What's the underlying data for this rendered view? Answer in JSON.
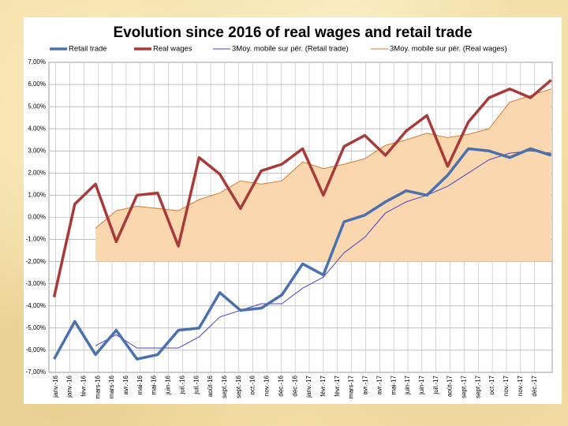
{
  "chart_data": {
    "type": "line",
    "title": "Evolution since 2016 of real wages and retail trade",
    "x": [
      0,
      1,
      2,
      3,
      4,
      5,
      6,
      7,
      8,
      9,
      10,
      11,
      12,
      13,
      14,
      15,
      16,
      17,
      18,
      19,
      20,
      21,
      22,
      23,
      24
    ],
    "series": [
      {
        "name": "Retail trade",
        "color": "#4a70ae",
        "width": 3.5,
        "values": [
          -6.4,
          -4.7,
          -6.2,
          -5.1,
          -6.4,
          -6.2,
          -5.1,
          -5.0,
          -3.4,
          -4.2,
          -4.1,
          -3.5,
          -2.1,
          -2.6,
          -0.2,
          0.1,
          0.7,
          1.2,
          1.0,
          1.9,
          3.1,
          3.0,
          2.7,
          3.1,
          2.8
        ]
      },
      {
        "name": "Real wages",
        "color": "#a83a3a",
        "width": 3.5,
        "values": [
          -3.6,
          0.6,
          1.5,
          -1.1,
          1.0,
          1.1,
          -1.3,
          2.7,
          1.95,
          0.4,
          2.1,
          2.4,
          3.1,
          1.0,
          3.2,
          3.7,
          2.8,
          3.9,
          4.6,
          2.3,
          4.3,
          5.4,
          5.8,
          5.4,
          6.2
        ]
      },
      {
        "name": "3Moy. mobile sur pér. (Retail trade)",
        "color": "#4a3fc4",
        "width": 1,
        "values": [
          null,
          null,
          -5.8,
          -5.3,
          -5.9,
          -5.9,
          -5.9,
          -5.4,
          -4.5,
          -4.2,
          -3.9,
          -3.9,
          -3.2,
          -2.7,
          -1.6,
          -0.9,
          0.2,
          0.7,
          1.0,
          1.4,
          2.0,
          2.6,
          2.9,
          3.0,
          2.9
        ]
      },
      {
        "name": "3Moy. mobile sur pér. (Real wages)",
        "color": "#d67a2c",
        "width": 1,
        "fill": "#fbd7b0",
        "fill_to": -2,
        "values": [
          null,
          null,
          -0.5,
          0.3,
          0.5,
          0.4,
          0.3,
          0.8,
          1.1,
          1.65,
          1.5,
          1.65,
          2.5,
          2.2,
          2.4,
          2.65,
          3.25,
          3.5,
          3.8,
          3.6,
          3.75,
          4.0,
          5.2,
          5.5,
          5.8
        ]
      }
    ],
    "xlim": [
      -0.25,
      24.05
    ],
    "xticks": [
      {
        "value": 0.08,
        "label": "janv.-16"
      },
      {
        "value": 0.76,
        "label": "janv.-16"
      },
      {
        "value": 1.44,
        "label": "févr.-16"
      },
      {
        "value": 2.12,
        "label": "mars-16"
      },
      {
        "value": 2.8,
        "label": "mars-16"
      },
      {
        "value": 3.48,
        "label": "avr.-16"
      },
      {
        "value": 4.16,
        "label": "mai-16"
      },
      {
        "value": 4.84,
        "label": "mai-16"
      },
      {
        "value": 5.52,
        "label": "juin-16"
      },
      {
        "value": 6.2,
        "label": "juil.-16"
      },
      {
        "value": 6.88,
        "label": "juil.-16"
      },
      {
        "value": 7.56,
        "label": "août-16"
      },
      {
        "value": 8.24,
        "label": "sept.-16"
      },
      {
        "value": 8.92,
        "label": "sept.-16"
      },
      {
        "value": 9.6,
        "label": "oct.-16"
      },
      {
        "value": 10.28,
        "label": "nov.-16"
      },
      {
        "value": 10.96,
        "label": "déc.-16"
      },
      {
        "value": 11.64,
        "label": "déc.-16"
      },
      {
        "value": 12.32,
        "label": "janv.-17"
      },
      {
        "value": 13,
        "label": "févr.-17"
      },
      {
        "value": 13.68,
        "label": "févr.-17"
      },
      {
        "value": 14.36,
        "label": "mars-17"
      },
      {
        "value": 15.04,
        "label": "avr.-17"
      },
      {
        "value": 15.72,
        "label": "avr.-17"
      },
      {
        "value": 16.4,
        "label": "mai-17"
      },
      {
        "value": 17.08,
        "label": "juin-17"
      },
      {
        "value": 17.76,
        "label": "juin-17"
      },
      {
        "value": 18.44,
        "label": "juil.-17"
      },
      {
        "value": 19.12,
        "label": "août-17"
      },
      {
        "value": 19.8,
        "label": "sept.-17"
      },
      {
        "value": 20.48,
        "label": "sept.-17"
      },
      {
        "value": 21.16,
        "label": "oct.-17"
      },
      {
        "value": 21.84,
        "label": "nov.-17"
      },
      {
        "value": 22.52,
        "label": "nov.-17"
      },
      {
        "value": 23.2,
        "label": "déc.-17"
      }
    ],
    "ylim": [
      -7,
      7
    ],
    "yticks": [
      {
        "value": -7,
        "label": "-7,00%"
      },
      {
        "value": -6,
        "label": "-6,00%"
      },
      {
        "value": -5,
        "label": "-5,00%"
      },
      {
        "value": -4,
        "label": "-4,00%"
      },
      {
        "value": -3,
        "label": "-3,00%"
      },
      {
        "value": -2,
        "label": "-2,00%"
      },
      {
        "value": -1,
        "label": "-1,00%"
      },
      {
        "value": 0,
        "label": "0,00%"
      },
      {
        "value": 1,
        "label": "1,00%"
      },
      {
        "value": 2,
        "label": "2,00%"
      },
      {
        "value": 3,
        "label": "3,00%"
      },
      {
        "value": 4,
        "label": "4,00%"
      },
      {
        "value": 5,
        "label": "5,00%"
      },
      {
        "value": 6,
        "label": "6,00%"
      },
      {
        "value": 7,
        "label": "7,00%"
      }
    ],
    "grid": true,
    "legend": "top"
  }
}
